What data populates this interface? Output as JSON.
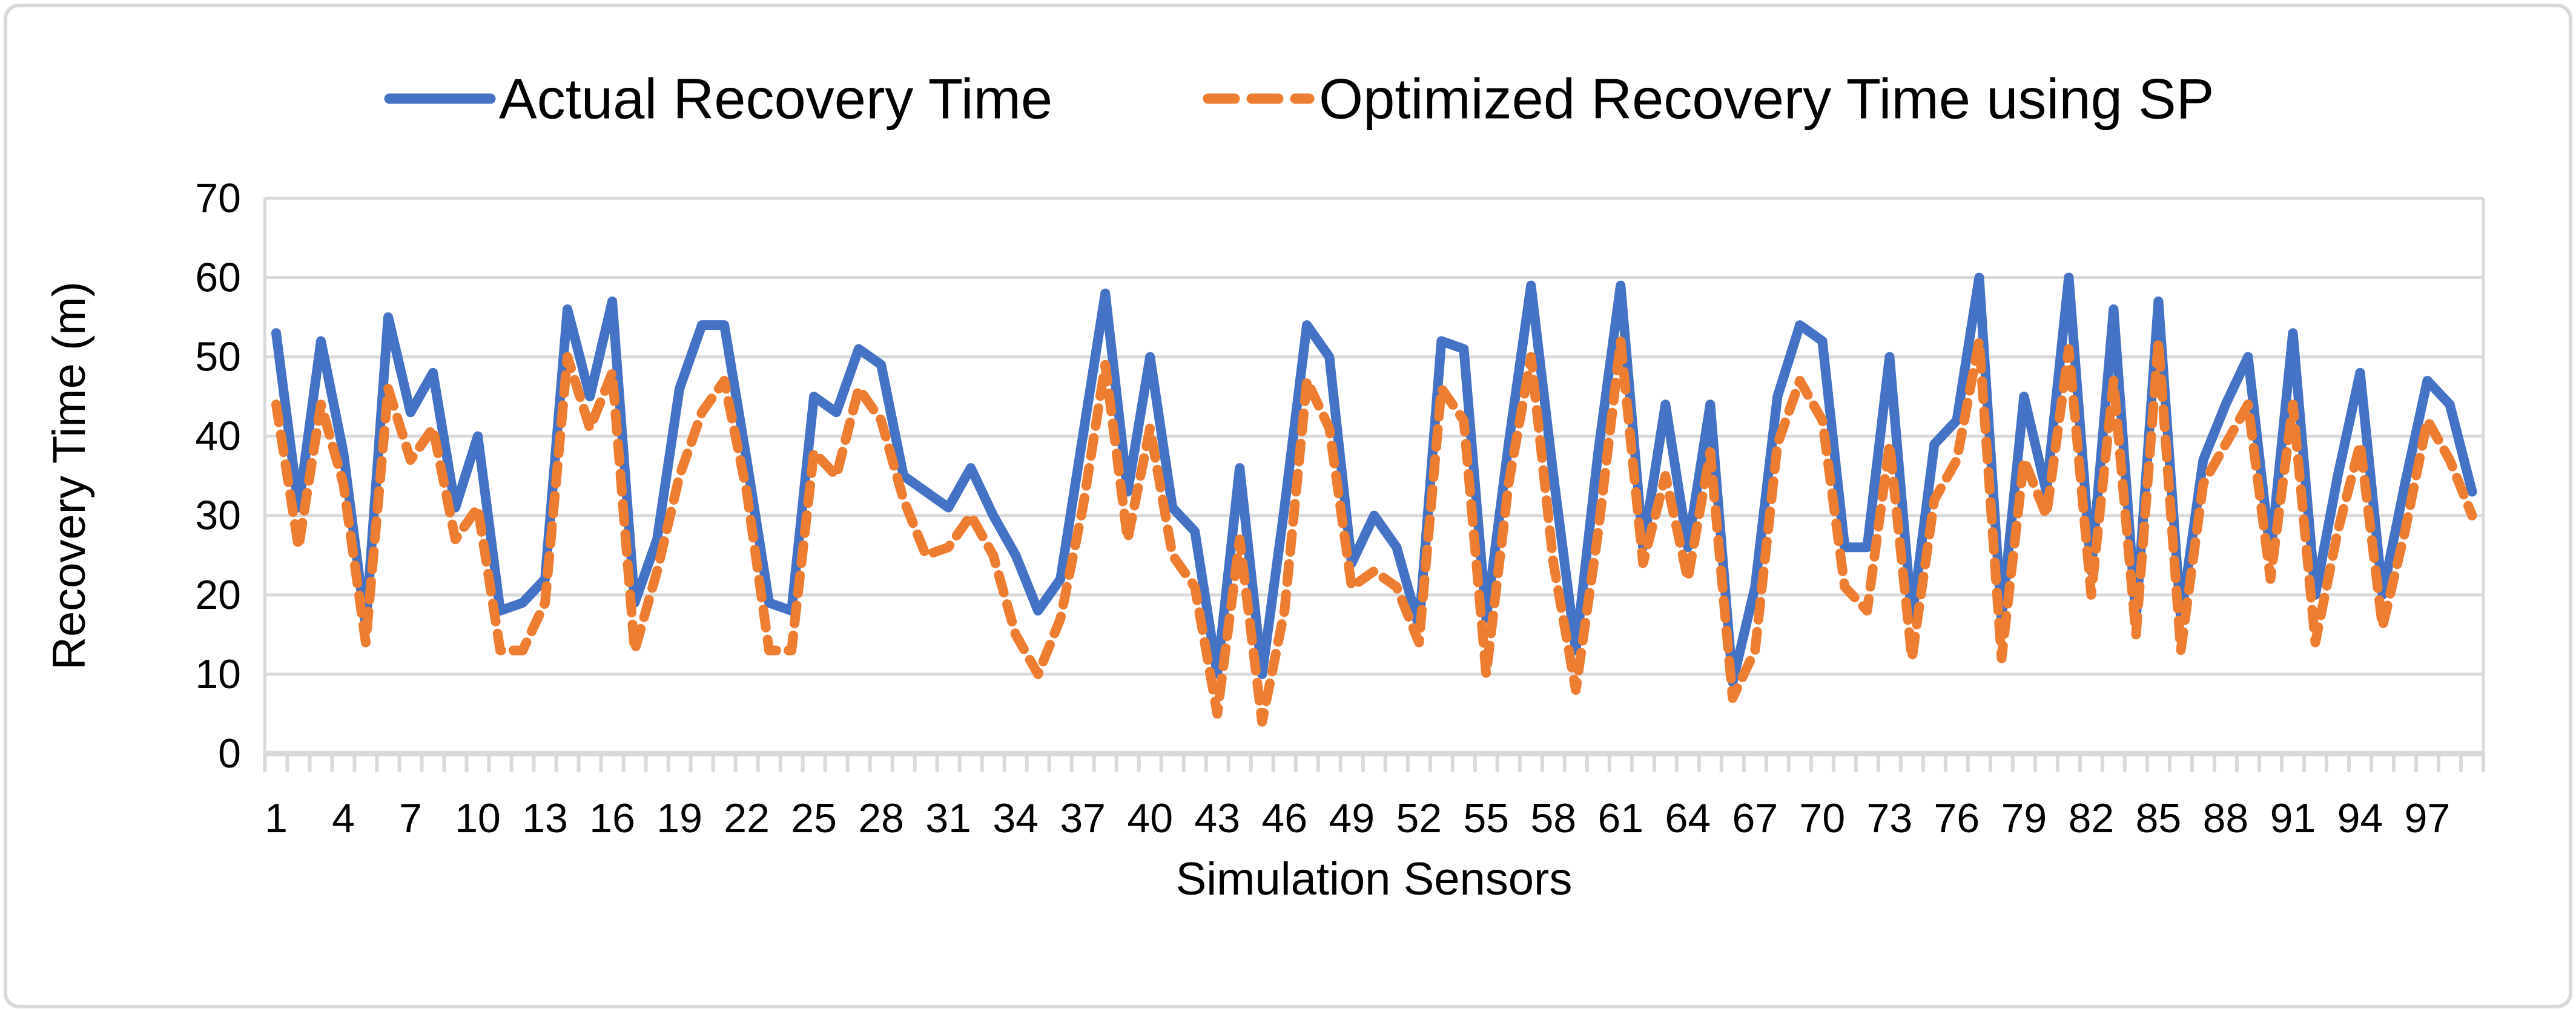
{
  "figure": {
    "background": "#FFFFFF",
    "border_color": "#D9D9D9"
  },
  "legend": {
    "items": [
      {
        "label": "Actual Recovery Time",
        "color": "#4472C4",
        "style": "solid"
      },
      {
        "label": "Optimized Recovery Time using SP",
        "color": "#ED7D31",
        "style": "dashed"
      }
    ]
  },
  "chart_data": {
    "type": "line",
    "title": "",
    "xlabel": "Simulation Sensors",
    "ylabel": "Recovery Time (m)",
    "ylim": [
      0,
      70
    ],
    "ytick_interval": 10,
    "ytick_labels": [
      "0",
      "10",
      "20",
      "30",
      "40",
      "50",
      "60",
      "70"
    ],
    "xtick_labels": [
      "1",
      "4",
      "7",
      "10",
      "13",
      "16",
      "19",
      "22",
      "25",
      "28",
      "31",
      "34",
      "37",
      "40",
      "43",
      "46",
      "49",
      "52",
      "55",
      "58",
      "61",
      "64",
      "67",
      "70",
      "73",
      "76",
      "79",
      "82",
      "85",
      "88",
      "91",
      "94",
      "97"
    ],
    "xtick_label_step": 3,
    "grid": true,
    "legend_position": "top",
    "x_count": 99,
    "series": [
      {
        "name": "Actual Recovery Time",
        "color": "#4472C4",
        "dash": "solid",
        "values": [
          53,
          31,
          52,
          38,
          16,
          55,
          43,
          48,
          31,
          40,
          18,
          19,
          22,
          56,
          45,
          57,
          19,
          27,
          46,
          54,
          54,
          37,
          19,
          18,
          45,
          43,
          51,
          49,
          35,
          33,
          31,
          36,
          30,
          25,
          18,
          22,
          40,
          58,
          33,
          50,
          31,
          28,
          10,
          36,
          10,
          31,
          54,
          50,
          24,
          30,
          26,
          16,
          52,
          51,
          17,
          39,
          59,
          35,
          13,
          38,
          59,
          26,
          44,
          26,
          44,
          9,
          21,
          45,
          54,
          52,
          26,
          26,
          50,
          17,
          39,
          42,
          60,
          17,
          45,
          33,
          60,
          23,
          56,
          17,
          57,
          17,
          37,
          44,
          50,
          25,
          53,
          20,
          35,
          48,
          20,
          34,
          47,
          44,
          33
        ]
      },
      {
        "name": "Optimized Recovery Time using SP",
        "color": "#ED7D31",
        "dash": "dashed",
        "values": [
          44,
          26,
          44,
          34,
          14,
          46,
          37,
          41,
          27,
          31,
          13,
          13,
          19,
          50,
          41,
          48,
          13,
          23,
          35,
          43,
          47,
          33,
          13,
          13,
          38,
          35,
          46,
          42,
          32,
          25,
          26,
          30,
          25,
          15,
          10,
          17,
          31,
          49,
          27,
          41,
          25,
          21,
          5,
          27,
          4,
          18,
          47,
          41,
          21,
          23,
          21,
          14,
          46,
          42,
          10,
          34,
          50,
          24,
          8,
          28,
          52,
          24,
          35,
          22,
          38,
          7,
          13,
          39,
          47,
          42,
          21,
          18,
          39,
          12,
          32,
          37,
          52,
          12,
          37,
          30,
          51,
          20,
          47,
          15,
          52,
          13,
          34,
          39,
          44,
          22,
          44,
          14,
          28,
          39,
          16,
          28,
          42,
          37,
          30
        ]
      }
    ]
  }
}
